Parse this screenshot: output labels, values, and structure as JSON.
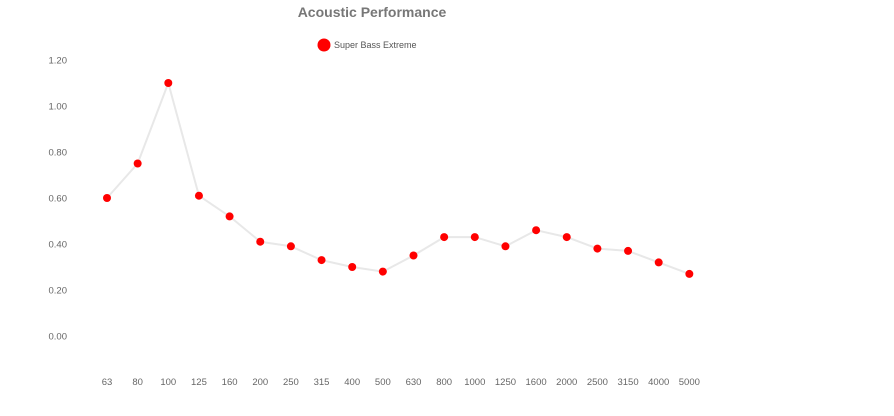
{
  "chart_data": {
    "type": "line",
    "title": "Acoustic Performance",
    "xlabel": "",
    "ylabel": "",
    "categories": [
      "63",
      "80",
      "100",
      "125",
      "160",
      "200",
      "250",
      "315",
      "400",
      "500",
      "630",
      "800",
      "1000",
      "1250",
      "1600",
      "2000",
      "2500",
      "3150",
      "4000",
      "5000"
    ],
    "series": [
      {
        "name": "Super Bass Extreme",
        "values": [
          0.6,
          0.75,
          1.1,
          0.61,
          0.52,
          0.41,
          0.39,
          0.33,
          0.3,
          0.28,
          0.35,
          0.43,
          0.43,
          0.39,
          0.46,
          0.43,
          0.38,
          0.37,
          0.32,
          0.27
        ],
        "color": "#ff0000",
        "line_color": "#e8e8e8"
      }
    ],
    "ylim": [
      0,
      1.2
    ],
    "yticks": [
      "0.00",
      "0.20",
      "0.40",
      "0.60",
      "0.80",
      "1.00",
      "1.20"
    ],
    "grid": false,
    "legend_position": "top-center"
  }
}
